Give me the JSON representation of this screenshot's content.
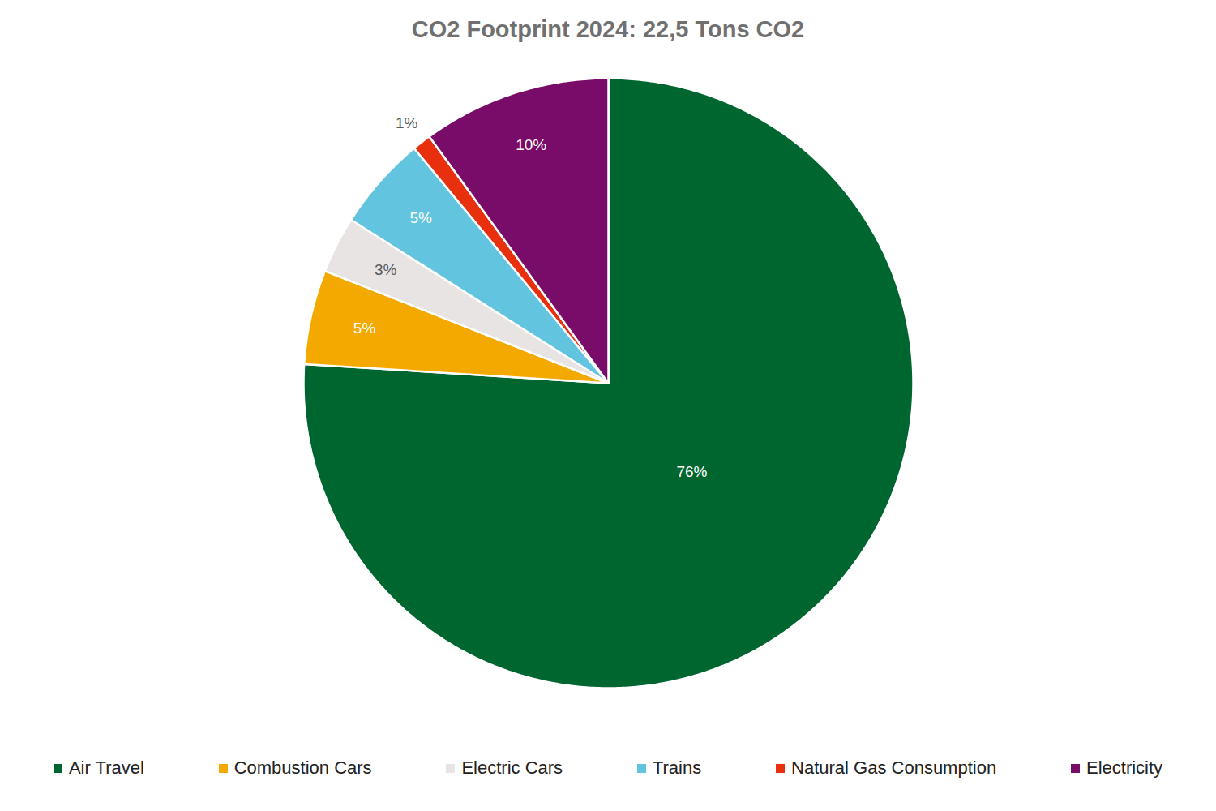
{
  "chart_data": {
    "type": "pie",
    "title": "CO2 Footprint 2024: 22,5 Tons CO2",
    "categories": [
      "Air Travel",
      "Combustion Cars",
      "Electric Cars",
      "Trains",
      "Natural Gas Consumption",
      "Electricity"
    ],
    "values": [
      76,
      5,
      3,
      5,
      1,
      10
    ],
    "value_labels": [
      "76%",
      "5%",
      "3%",
      "5%",
      "1%",
      "10%"
    ],
    "colors": [
      "#00662f",
      "#f4a900",
      "#e8e4e4",
      "#62c4df",
      "#e8300e",
      "#7a0c69"
    ],
    "data_labels": true,
    "legend": "bottom"
  }
}
